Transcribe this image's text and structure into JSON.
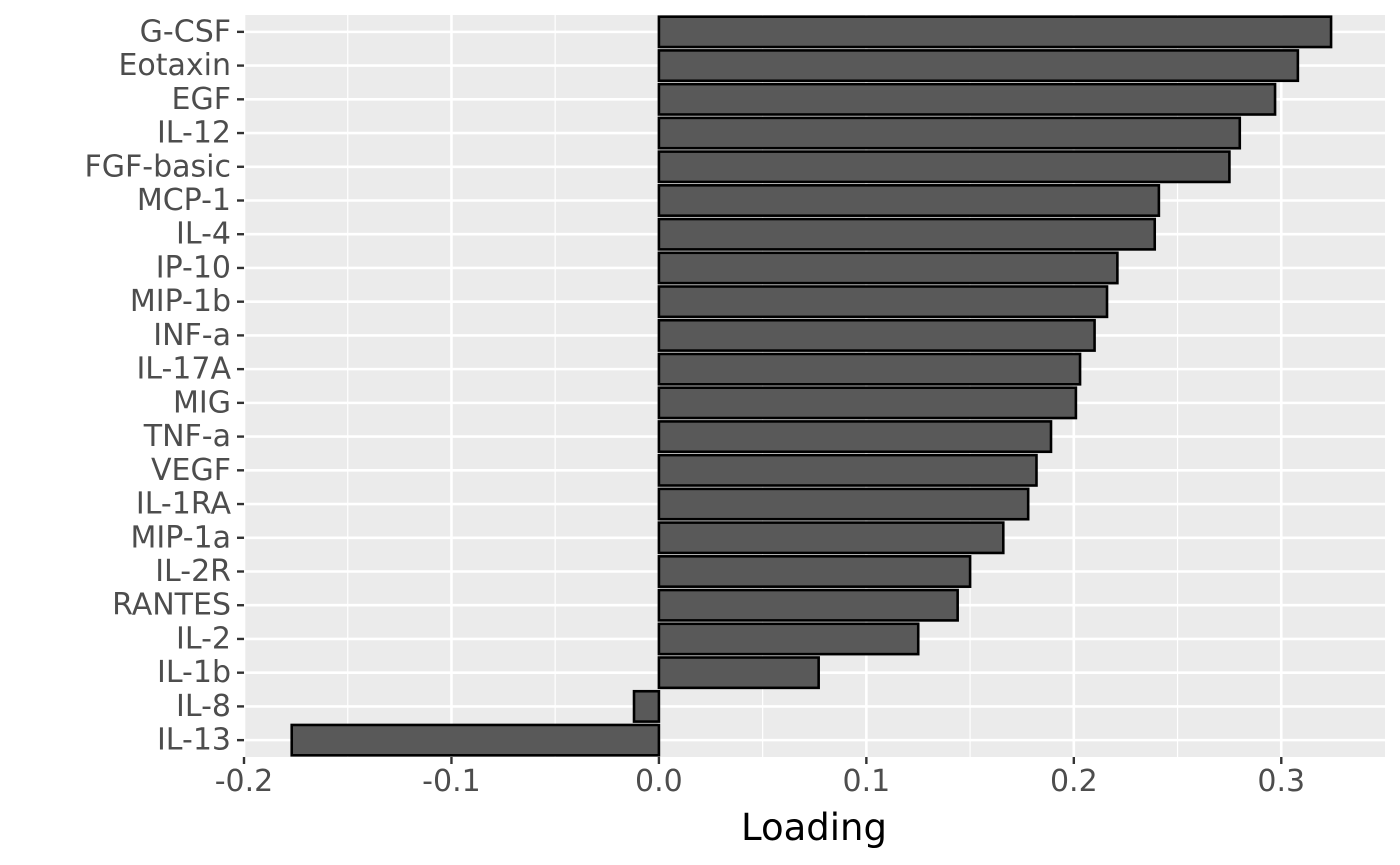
{
  "chart_data": {
    "type": "bar",
    "orientation": "horizontal",
    "title": "",
    "xlabel": "Loading",
    "ylabel": "",
    "xlim": [
      -0.2,
      0.35
    ],
    "x_ticks": [
      -0.2,
      -0.1,
      0.0,
      0.1,
      0.2,
      0.3
    ],
    "x_tick_labels": [
      "-0.2",
      "-0.1",
      "0.0",
      "0.1",
      "0.2",
      "0.3"
    ],
    "grid": true,
    "colors": {
      "panel_background": "#ebebeb",
      "grid_line": "#ffffff",
      "bar_fill": "#595959",
      "bar_outline": "#000000",
      "tick_label": "#4d4d4d",
      "axis_title": "#000000"
    },
    "categories": [
      "G-CSF",
      "Eotaxin",
      "EGF",
      "IL-12",
      "FGF-basic",
      "MCP-1",
      "IL-4",
      "IP-10",
      "MIP-1b",
      "INF-a",
      "IL-17A",
      "MIG",
      "TNF-a",
      "VEGF",
      "IL-1RA",
      "MIP-1a",
      "IL-2R",
      "RANTES",
      "IL-2",
      "IL-1b",
      "IL-8",
      "IL-13"
    ],
    "values": [
      0.324,
      0.308,
      0.297,
      0.28,
      0.275,
      0.241,
      0.239,
      0.221,
      0.216,
      0.21,
      0.203,
      0.201,
      0.189,
      0.182,
      0.178,
      0.166,
      0.15,
      0.144,
      0.125,
      0.077,
      -0.012,
      -0.177
    ]
  }
}
